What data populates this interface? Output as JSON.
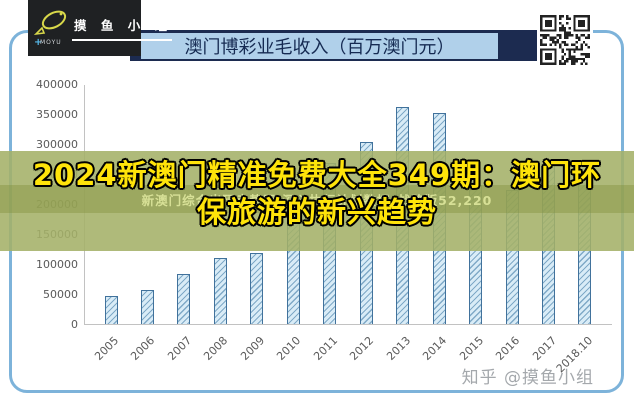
{
  "logo": {
    "name": "摸 鱼 小 组",
    "latin": "MOYU"
  },
  "header": {
    "title": "澳门博彩业毛收入（百万澳门元）"
  },
  "overlay": {
    "headline_lines": [
      "2024新澳门精准免费大全349期：澳门环",
      "保旅游的新兴趋势"
    ],
    "headline_full": "2024新澳门精准免费大全349期：澳门环保旅游的新兴趋势",
    "watermark_line": "新澳门综合出码走势图,深入执行计划数据_战略版52,220"
  },
  "footer": {
    "watermark": "知乎 @摸鱼小组"
  },
  "colors": {
    "frame_blue": "#7db3da",
    "title_strip_navy": "#1c2b50",
    "title_bg_blue": "#b0d0ea",
    "overlay_green": "#a4b068",
    "headline_yellow": "#ffe40a",
    "bar_fill": "#d9ecf7",
    "bar_border": "#41729c",
    "bar_hatch": "#7fa9c7",
    "axis_text_gray": "#595959"
  },
  "chart_data": {
    "type": "bar",
    "title": "澳门博彩业毛收入（百万澳门元）",
    "categories": [
      "2005",
      "2006",
      "2007",
      "2008",
      "2009",
      "2010",
      "2011",
      "2012",
      "2013",
      "2014",
      "2015",
      "2016",
      "2017",
      "2018.10"
    ],
    "values": [
      46000,
      57000,
      83000,
      110000,
      119000,
      188000,
      269000,
      304000,
      361000,
      352000,
      231000,
      223000,
      266000,
      251000
    ],
    "xlabel": "",
    "ylabel": "",
    "ylim": [
      0,
      400000
    ],
    "ytick_step": 50000,
    "yticks": [
      "400000",
      "350000",
      "300000",
      "250000",
      "200000",
      "150000",
      "100000",
      "50000",
      "0"
    ],
    "grid": false,
    "legend": "none",
    "bar_pattern": "diagonal-hatch"
  }
}
